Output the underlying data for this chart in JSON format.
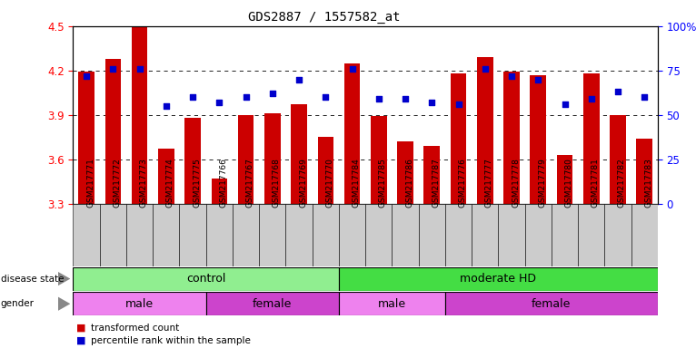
{
  "title": "GDS2887 / 1557582_at",
  "samples": [
    "GSM217771",
    "GSM217772",
    "GSM217773",
    "GSM217774",
    "GSM217775",
    "GSM217766",
    "GSM217767",
    "GSM217768",
    "GSM217769",
    "GSM217770",
    "GSM217784",
    "GSM217785",
    "GSM217786",
    "GSM217787",
    "GSM217776",
    "GSM217777",
    "GSM217778",
    "GSM217779",
    "GSM217780",
    "GSM217781",
    "GSM217782",
    "GSM217783"
  ],
  "bar_values": [
    4.19,
    4.28,
    4.5,
    3.67,
    3.88,
    3.47,
    3.9,
    3.91,
    3.97,
    3.75,
    4.25,
    3.89,
    3.72,
    3.69,
    4.18,
    4.29,
    4.19,
    4.17,
    3.63,
    4.18,
    3.9,
    3.74
  ],
  "percentile_raw": [
    72,
    76,
    76,
    55,
    60,
    57,
    60,
    62,
    70,
    60,
    76,
    59,
    59,
    57,
    56,
    76,
    72,
    70,
    56,
    59,
    63,
    60
  ],
  "ylim_left": [
    3.3,
    4.5
  ],
  "ylim_right": [
    0,
    100
  ],
  "bar_color": "#CC0000",
  "dot_color": "#0000CC",
  "bg_color": "#FFFFFF",
  "control_color": "#90EE90",
  "moderate_color": "#44DD44",
  "male_light": "#EE82EE",
  "female_dark": "#CC44CC"
}
